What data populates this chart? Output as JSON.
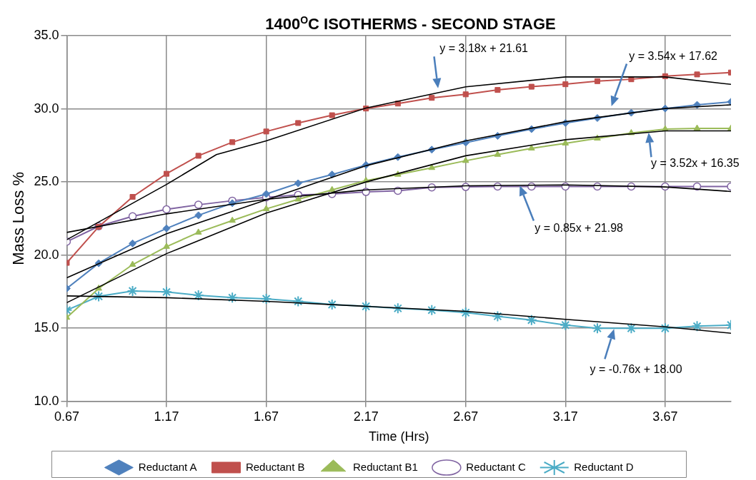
{
  "chart_data": {
    "type": "line",
    "title": "1400$^{O}$C ISOTHERMS - SECOND STAGE",
    "xlabel": "Time (Hrs)",
    "ylabel": "Mass Loss %",
    "x": [
      0.67,
      0.83,
      1.0,
      1.17,
      1.33,
      1.5,
      1.67,
      1.83,
      2.0,
      2.17,
      2.33,
      2.5,
      2.67,
      2.83,
      3.0,
      3.17,
      3.33,
      3.5,
      3.67,
      3.83,
      4.0
    ],
    "series": [
      {
        "name": "Reductant A",
        "color": "#4f81bd",
        "marker": "diamond",
        "values": [
          17.72,
          19.44,
          20.8,
          21.82,
          22.72,
          23.55,
          24.18,
          24.91,
          25.51,
          26.16,
          26.7,
          27.21,
          27.69,
          28.15,
          28.61,
          29.03,
          29.37,
          29.73,
          30.02,
          30.27,
          30.48
        ]
      },
      {
        "name": "Reductant B",
        "color": "#c0504d",
        "marker": "square",
        "values": [
          19.47,
          21.94,
          23.98,
          25.56,
          26.79,
          27.72,
          28.45,
          29.03,
          29.56,
          30.02,
          30.36,
          30.75,
          30.99,
          31.29,
          31.51,
          31.68,
          31.89,
          32.02,
          32.23,
          32.35,
          32.48
        ]
      },
      {
        "name": "Reductant B1",
        "color": "#9bbb59",
        "marker": "triangle",
        "values": [
          15.73,
          17.72,
          19.35,
          20.58,
          21.55,
          22.36,
          23.16,
          23.81,
          24.46,
          25.09,
          25.51,
          25.97,
          26.45,
          26.87,
          27.3,
          27.64,
          27.98,
          28.35,
          28.61,
          28.66,
          28.66
        ]
      },
      {
        "name": "Reductant C",
        "color": "#8064a2",
        "marker": "circle",
        "values": [
          20.92,
          21.97,
          22.65,
          23.13,
          23.44,
          23.72,
          23.95,
          24.12,
          24.18,
          24.32,
          24.4,
          24.63,
          24.66,
          24.69,
          24.69,
          24.69,
          24.69,
          24.69,
          24.69,
          24.69,
          24.69
        ]
      },
      {
        "name": "Reductant D",
        "color": "#4bacc6",
        "marker": "cross",
        "values": [
          16.24,
          17.18,
          17.55,
          17.48,
          17.26,
          17.09,
          17.01,
          16.84,
          16.62,
          16.5,
          16.36,
          16.24,
          16.07,
          15.82,
          15.56,
          15.22,
          15.0,
          15.0,
          15.0,
          15.14,
          15.22
        ]
      },
      {
        "color": "#000000",
        "marker": "none",
        "x": [
          0.67,
          1.17,
          1.42,
          1.67,
          2.17,
          2.67,
          3.17,
          3.67,
          4.0
        ],
        "values": [
          21.05,
          24.83,
          26.87,
          27.81,
          30.05,
          31.5,
          32.18,
          32.18,
          31.67
        ]
      },
      {
        "color": "#000000",
        "marker": "none",
        "x": [
          0.67,
          1.17,
          1.67,
          2.17,
          2.67,
          3.17,
          3.67,
          4.0
        ],
        "values": [
          18.45,
          21.46,
          23.78,
          26.11,
          27.81,
          29.12,
          30.02,
          30.27
        ]
      },
      {
        "color": "#000000",
        "marker": "none",
        "x": [
          0.67,
          1.17,
          1.67,
          2.17,
          2.67,
          3.17,
          3.67,
          4.0
        ],
        "values": [
          16.75,
          20.1,
          22.87,
          25.0,
          26.79,
          27.89,
          28.49,
          28.49
        ]
      },
      {
        "color": "#000000",
        "marker": "none",
        "x": [
          0.67,
          1.17,
          1.67,
          2.17,
          2.67,
          3.17,
          3.67,
          4.0
        ],
        "values": [
          21.55,
          22.82,
          23.81,
          24.46,
          24.74,
          24.8,
          24.66,
          24.35
        ]
      },
      {
        "color": "#000000",
        "marker": "none",
        "x": [
          0.67,
          1.17,
          1.67,
          2.17,
          2.67,
          3.17,
          3.67,
          4.0
        ],
        "values": [
          17.21,
          17.09,
          16.84,
          16.5,
          16.16,
          15.61,
          15.1,
          14.66
        ]
      }
    ],
    "xlim": [
      0.67,
      4.0
    ],
    "xticks": [
      0.67,
      1.17,
      1.67,
      2.17,
      2.67,
      3.17,
      3.67
    ],
    "ylim": [
      10,
      35
    ],
    "yticks": [
      {
        "value": 10,
        "label": "10.0"
      },
      {
        "value": 15,
        "label": "15.0"
      },
      {
        "value": 20,
        "label": "20.0"
      },
      {
        "value": 25,
        "label": "25.0"
      },
      {
        "value": 30,
        "label": "30.0"
      },
      {
        "value": 35,
        "label": "35.0"
      }
    ],
    "annotations": [
      "y = 3.18x + 21.61",
      "y = 3.54x + 17.62",
      "y = 3.52x + 16.35",
      "y = 0.85x + 21.98",
      "y = -0.76x + 18.00"
    ],
    "grid": true,
    "legend": "bottom"
  }
}
